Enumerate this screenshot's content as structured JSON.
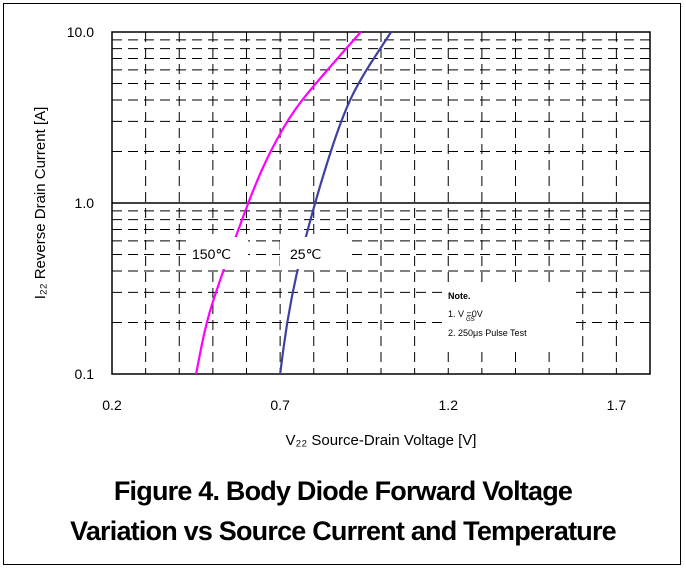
{
  "chart_data": {
    "type": "line",
    "title": "",
    "xlabel": "V₂₂ Source-Drain Voltage [V]",
    "ylabel": "I₂₂ Reverse Drain Current [A]",
    "x_scale": "linear",
    "y_scale": "log",
    "xlim": [
      0.2,
      1.8
    ],
    "ylim": [
      0.1,
      10.0
    ],
    "x_ticks": [
      "0.2",
      "0.7",
      "1.2",
      "1.7"
    ],
    "y_ticks": [
      "0.1",
      "1.0",
      "10.0"
    ],
    "grid": true,
    "series": [
      {
        "name": "150℃",
        "color": "#ff00ff",
        "points": [
          [
            0.45,
            0.1
          ],
          [
            0.48,
            0.2
          ],
          [
            0.52,
            0.35
          ],
          [
            0.57,
            0.65
          ],
          [
            0.62,
            1.2
          ],
          [
            0.67,
            2.0
          ],
          [
            0.74,
            3.5
          ],
          [
            0.84,
            6.0
          ],
          [
            0.94,
            10.0
          ]
        ]
      },
      {
        "name": "25℃",
        "color": "#4040a0",
        "points": [
          [
            0.7,
            0.1
          ],
          [
            0.72,
            0.2
          ],
          [
            0.75,
            0.4
          ],
          [
            0.79,
            0.8
          ],
          [
            0.83,
            1.5
          ],
          [
            0.88,
            3.0
          ],
          [
            0.93,
            5.0
          ],
          [
            1.03,
            10.0
          ]
        ]
      }
    ],
    "annotations": {
      "note_title": "Note.",
      "note_line1": "1. V    =0V",
      "note_line2": "2. 250μs Pulse Test"
    }
  },
  "caption": {
    "line1": "Figure 4. Body Diode Forward Voltage",
    "line2": "Variation vs Source Current and Temperature"
  }
}
